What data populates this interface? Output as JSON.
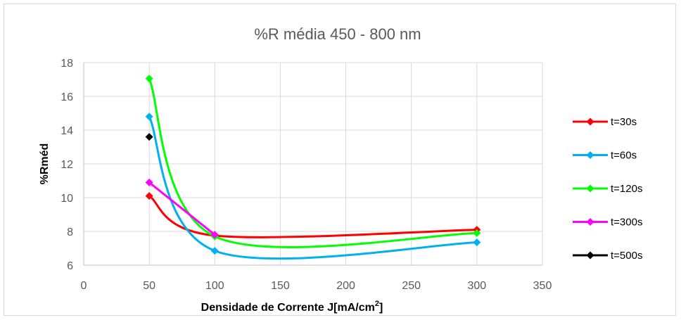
{
  "chart_data": {
    "type": "line",
    "title": "%R média 450 - 800 nm",
    "xlabel_main": "Densidade de Corrente J[mA/cm",
    "xlabel_sup": "2",
    "xlabel_end": "]",
    "ylabel": "%Rméd",
    "xlim": [
      0,
      350
    ],
    "ylim": [
      6,
      18
    ],
    "xticks": [
      0,
      50,
      100,
      150,
      200,
      250,
      300,
      350
    ],
    "yticks": [
      6,
      8,
      10,
      12,
      14,
      16,
      18
    ],
    "xtick_labels": [
      "0",
      "50",
      "100",
      "150",
      "200",
      "250",
      "300",
      "350"
    ],
    "ytick_labels": [
      "6",
      "8",
      "10",
      "12",
      "14",
      "16",
      "18"
    ],
    "grid": true,
    "legend_position": "right",
    "smooth": true,
    "series": [
      {
        "name": "t=30s",
        "color": "#ff0000",
        "x": [
          50,
          100,
          300
        ],
        "y": [
          10.1,
          7.75,
          8.1
        ]
      },
      {
        "name": "t=60s",
        "color": "#00b0f0",
        "x": [
          50,
          100,
          300
        ],
        "y": [
          14.8,
          6.85,
          7.35
        ]
      },
      {
        "name": "t=120s",
        "color": "#00ff00",
        "x": [
          50,
          100,
          300
        ],
        "y": [
          17.05,
          7.7,
          7.9
        ]
      },
      {
        "name": "t=300s",
        "color": "#ff00ff",
        "x": [
          50,
          100
        ],
        "y": [
          10.9,
          7.8
        ]
      },
      {
        "name": "t=500s",
        "color": "#000000",
        "x": [
          50
        ],
        "y": [
          13.6
        ]
      }
    ]
  }
}
